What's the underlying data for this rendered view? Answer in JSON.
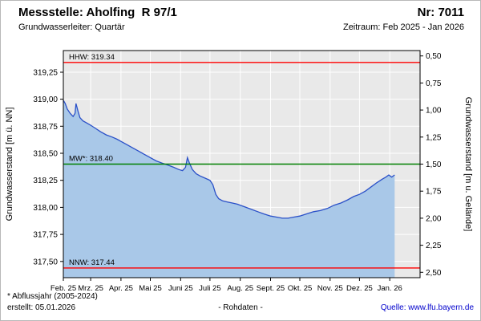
{
  "header": {
    "station": "Messstelle: Aholfing  R 97/1",
    "number": "Nr: 7011",
    "aquifer": "Grundwasserleiter: Quartär",
    "period": "Zeitraum: Feb 2025 - Jan 2026"
  },
  "footer": {
    "note": "* Abflussjahr (2005-2024)",
    "created": "erstellt:  05.01.2026",
    "center": "- Rohdaten -",
    "source": "Quelle: www.lfu.bayern.de"
  },
  "colors": {
    "plot_background": "#e9e9e9",
    "grid": "#ffffff",
    "axis": "#000000",
    "series_line": "#2a50c8",
    "series_fill": "#a9c8e8",
    "reference_red": "#ff0000",
    "reference_green": "#008000",
    "link": "#0000cc"
  },
  "chart_data": {
    "type": "area",
    "x_unit": "days since 2025-02-01",
    "x_range_days": [
      0,
      365
    ],
    "x_tick_days": [
      0,
      28,
      59,
      89,
      120,
      150,
      181,
      212,
      242,
      273,
      303,
      334
    ],
    "x_tick_labels": [
      "Feb. 25",
      "Mrz. 25",
      "Apr. 25",
      "Mai 25",
      "Juni 25",
      "Juli 25",
      "Aug. 25",
      "Sept. 25",
      "Okt. 25",
      "Nov. 25",
      "Dez. 25",
      "Jan. 26"
    ],
    "ylabel_left": "Grundwasserstand [m ü. NN]",
    "ylabel_right": "Grundwasserstand [m u. Gelände]",
    "ylim_left": [
      317.35,
      319.45
    ],
    "yticks_left": [
      317.5,
      317.75,
      318.0,
      318.25,
      318.5,
      318.75,
      319.0,
      319.25
    ],
    "right_axis": {
      "ground_elevation_m_nn": 319.9,
      "ticks": [
        0.5,
        0.75,
        1.0,
        1.25,
        1.5,
        1.75,
        2.0,
        2.25,
        2.5
      ]
    },
    "grid": true,
    "legend_position": "none",
    "reference_lines": [
      {
        "name": "HHW",
        "label": "HHW: 319.34",
        "value": 319.34,
        "color": "#ff0000"
      },
      {
        "name": "MW",
        "label": "MW*: 318.40",
        "value": 318.4,
        "color": "#008000"
      },
      {
        "name": "NNW",
        "label": "NNW: 317.44",
        "value": 317.44,
        "color": "#ff0000"
      }
    ],
    "series": [
      {
        "name": "Grundwasserstand Rohdaten",
        "color": "#2a50c8",
        "fill": "#a9c8e8",
        "points": [
          [
            0,
            318.99
          ],
          [
            2,
            318.96
          ],
          [
            4,
            318.91
          ],
          [
            7,
            318.87
          ],
          [
            10,
            318.84
          ],
          [
            12,
            318.87
          ],
          [
            13,
            318.96
          ],
          [
            15,
            318.89
          ],
          [
            17,
            318.83
          ],
          [
            20,
            318.8
          ],
          [
            24,
            318.78
          ],
          [
            28,
            318.76
          ],
          [
            33,
            318.73
          ],
          [
            38,
            318.7
          ],
          [
            44,
            318.67
          ],
          [
            50,
            318.65
          ],
          [
            55,
            318.63
          ],
          [
            59,
            318.61
          ],
          [
            65,
            318.58
          ],
          [
            71,
            318.55
          ],
          [
            77,
            318.52
          ],
          [
            83,
            318.49
          ],
          [
            89,
            318.46
          ],
          [
            95,
            318.43
          ],
          [
            101,
            318.41
          ],
          [
            107,
            318.39
          ],
          [
            113,
            318.37
          ],
          [
            118,
            318.35
          ],
          [
            122,
            318.34
          ],
          [
            125,
            318.37
          ],
          [
            127,
            318.46
          ],
          [
            129,
            318.41
          ],
          [
            132,
            318.35
          ],
          [
            136,
            318.31
          ],
          [
            140,
            318.29
          ],
          [
            145,
            318.27
          ],
          [
            150,
            318.25
          ],
          [
            153,
            318.21
          ],
          [
            156,
            318.12
          ],
          [
            159,
            318.08
          ],
          [
            163,
            318.06
          ],
          [
            168,
            318.05
          ],
          [
            173,
            318.04
          ],
          [
            178,
            318.03
          ],
          [
            181,
            318.02
          ],
          [
            187,
            318.0
          ],
          [
            193,
            317.98
          ],
          [
            199,
            317.96
          ],
          [
            205,
            317.94
          ],
          [
            212,
            317.92
          ],
          [
            218,
            317.91
          ],
          [
            224,
            317.9
          ],
          [
            230,
            317.9
          ],
          [
            236,
            317.91
          ],
          [
            242,
            317.92
          ],
          [
            249,
            317.94
          ],
          [
            256,
            317.96
          ],
          [
            263,
            317.97
          ],
          [
            270,
            317.99
          ],
          [
            277,
            318.02
          ],
          [
            284,
            318.04
          ],
          [
            291,
            318.07
          ],
          [
            297,
            318.1
          ],
          [
            303,
            318.12
          ],
          [
            309,
            318.15
          ],
          [
            315,
            318.19
          ],
          [
            321,
            318.23
          ],
          [
            326,
            318.26
          ],
          [
            330,
            318.28
          ],
          [
            333,
            318.3
          ],
          [
            336,
            318.28
          ],
          [
            339,
            318.3
          ]
        ]
      }
    ]
  }
}
